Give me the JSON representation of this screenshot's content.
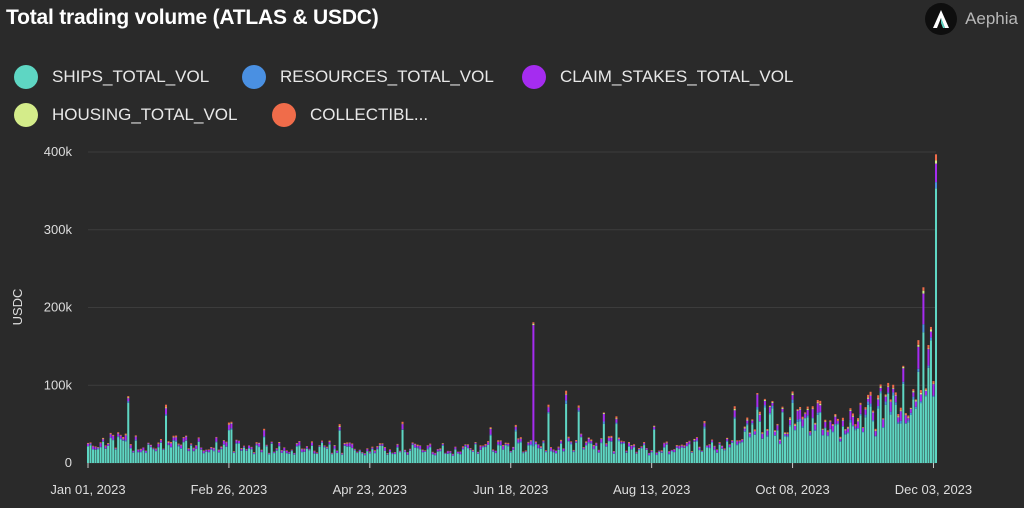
{
  "header": {
    "title": "Total trading volume (ATLAS & USDC)",
    "brand_name": "Aephia"
  },
  "chart_data": {
    "type": "bar",
    "stacked": true,
    "title": "Total trading volume (ATLAS & USDC)",
    "xlabel": "",
    "ylabel": "USDC",
    "ylim": [
      0,
      400000
    ],
    "y_ticks": [
      0,
      100000,
      200000,
      300000,
      400000
    ],
    "y_tick_labels": [
      "0",
      "100k",
      "200k",
      "300k",
      "400k"
    ],
    "x_tick_labels": [
      "Jan 01, 2023",
      "Feb 26, 2023",
      "Apr 23, 2023",
      "Jun 18, 2023",
      "Aug 13, 2023",
      "Oct 08, 2023",
      "Dec 03, 2023"
    ],
    "x_tick_day_index": [
      0,
      56,
      112,
      168,
      224,
      280,
      336
    ],
    "legend": [
      {
        "name": "SHIPS_TOTAL_VOL",
        "color": "#5ed6c3"
      },
      {
        "name": "RESOURCES_TOTAL_VOL",
        "color": "#4a90e2"
      },
      {
        "name": "CLAIM_STAKES_TOTAL_VOL",
        "color": "#a52cf0"
      },
      {
        "name": "HOUSING_TOTAL_VOL",
        "color": "#d4ec8a"
      },
      {
        "name": "COLLECTIBL...",
        "color": "#f06c4a"
      }
    ],
    "series_colors": [
      "#5ed6c3",
      "#4a90e2",
      "#a52cf0",
      "#d4ec8a",
      "#f06c4a"
    ],
    "days": 338,
    "anchors": [
      [
        0,
        26000
      ],
      [
        10,
        30000
      ],
      [
        20,
        25000
      ],
      [
        30,
        28000
      ],
      [
        40,
        25000
      ],
      [
        50,
        25000
      ],
      [
        60,
        22000
      ],
      [
        70,
        20000
      ],
      [
        80,
        21000
      ],
      [
        90,
        20000
      ],
      [
        100,
        22000
      ],
      [
        110,
        19000
      ],
      [
        120,
        18000
      ],
      [
        130,
        20000
      ],
      [
        140,
        19000
      ],
      [
        150,
        18000
      ],
      [
        160,
        22000
      ],
      [
        170,
        24000
      ],
      [
        180,
        23000
      ],
      [
        190,
        28000
      ],
      [
        200,
        27000
      ],
      [
        210,
        25000
      ],
      [
        220,
        20000
      ],
      [
        230,
        22000
      ],
      [
        240,
        25000
      ],
      [
        250,
        24000
      ],
      [
        260,
        30000
      ],
      [
        265,
        60000
      ],
      [
        270,
        62000
      ],
      [
        275,
        50000
      ],
      [
        280,
        70000
      ],
      [
        285,
        55000
      ],
      [
        290,
        60000
      ],
      [
        295,
        50000
      ],
      [
        300,
        55000
      ],
      [
        305,
        60000
      ],
      [
        310,
        65000
      ],
      [
        315,
        70000
      ],
      [
        320,
        75000
      ],
      [
        325,
        85000
      ],
      [
        330,
        95000
      ],
      [
        336,
        130000
      ]
    ],
    "spikes": [
      [
        16,
        86000
      ],
      [
        31,
        75000
      ],
      [
        56,
        52000
      ],
      [
        57,
        53000
      ],
      [
        70,
        44000
      ],
      [
        100,
        50000
      ],
      [
        125,
        53000
      ],
      [
        160,
        46000
      ],
      [
        170,
        49000
      ],
      [
        177,
        181000
      ],
      [
        183,
        75000
      ],
      [
        190,
        93000
      ],
      [
        195,
        74000
      ],
      [
        205,
        65000
      ],
      [
        210,
        60000
      ],
      [
        225,
        48000
      ],
      [
        245,
        54000
      ],
      [
        257,
        73000
      ],
      [
        266,
        90000
      ],
      [
        280,
        92000
      ],
      [
        290,
        81000
      ],
      [
        315,
        101000
      ],
      [
        318,
        103000
      ],
      [
        324,
        125000
      ],
      [
        330,
        158000
      ],
      [
        332,
        226000
      ],
      [
        335,
        175000
      ],
      [
        337,
        397000
      ]
    ]
  }
}
